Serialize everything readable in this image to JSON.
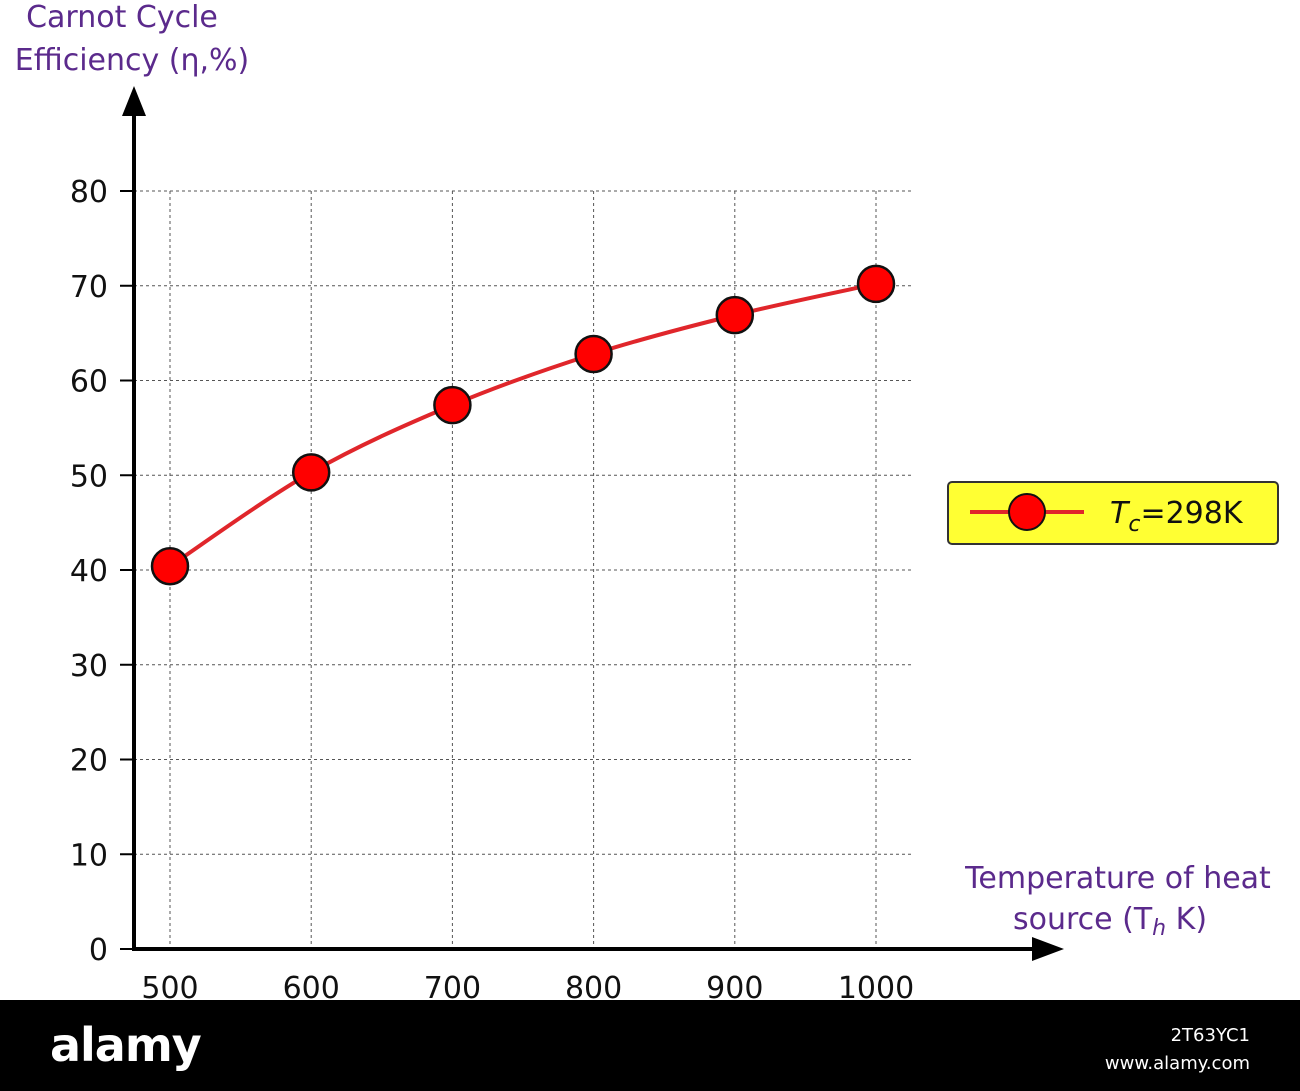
{
  "chart_data": {
    "type": "line",
    "ylabel_lines": [
      "Carnot Cycle",
      "Efficiency (η,%)"
    ],
    "xlabel_lines": [
      "Temperature of heat",
      "source (T",
      "h",
      " K)"
    ],
    "x": [
      500,
      600,
      700,
      800,
      900,
      1000
    ],
    "xticks": [
      "500",
      "600",
      "700",
      "800",
      "900",
      "1000"
    ],
    "yticks": [
      "0",
      "10",
      "20",
      "30",
      "40",
      "50",
      "60",
      "70",
      "80"
    ],
    "ylim": [
      0,
      80
    ],
    "xlim": [
      500,
      1000
    ],
    "grid": true,
    "legend_placement": "right",
    "series": [
      {
        "legend_parts": [
          "T",
          "c",
          "=298K"
        ],
        "values": [
          40.4,
          50.3,
          57.4,
          62.8,
          66.9,
          70.2
        ],
        "line_color": "#e0262b",
        "marker_color": "#ff0000",
        "marker": "circle"
      }
    ],
    "legend_background": "#ffff33",
    "label_color": "#5b2a8c"
  },
  "footer": {
    "brand": "alamy",
    "image_id": "2T63YC1",
    "site": "www.alamy.com"
  }
}
